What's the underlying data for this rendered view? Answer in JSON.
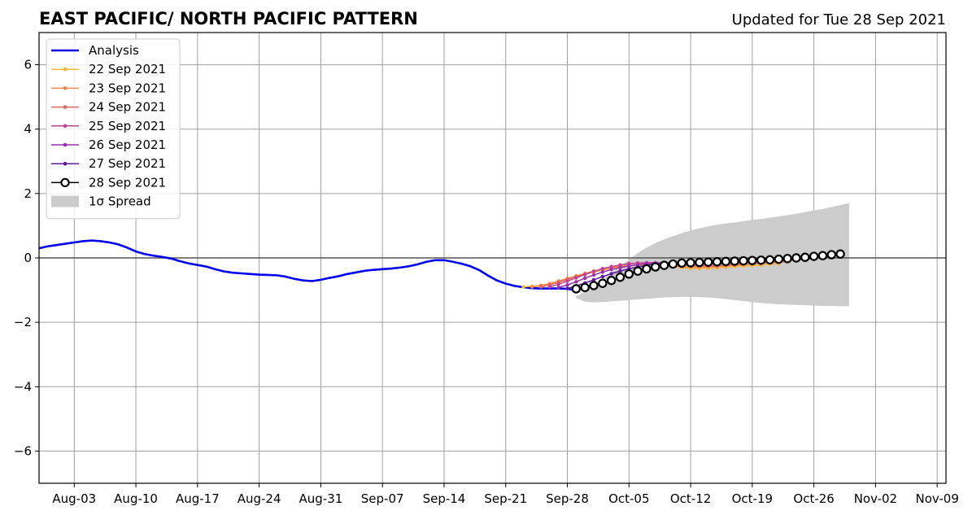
{
  "chart_data": {
    "type": "line",
    "title": "EAST PACIFIC/ NORTH PACIFIC PATTERN",
    "subtitle": "Updated for Tue 28 Sep 2021",
    "xlabel": "",
    "ylabel": "",
    "x_start": "2021-07-30",
    "x_end": "2021-11-10",
    "ylim": [
      -7,
      7
    ],
    "yticks": [
      -6,
      -4,
      -2,
      0,
      2,
      4,
      6
    ],
    "xticks": [
      {
        "date": "2021-08-03",
        "label": "Aug-03"
      },
      {
        "date": "2021-08-10",
        "label": "Aug-10"
      },
      {
        "date": "2021-08-17",
        "label": "Aug-17"
      },
      {
        "date": "2021-08-24",
        "label": "Aug-24"
      },
      {
        "date": "2021-08-31",
        "label": "Aug-31"
      },
      {
        "date": "2021-09-07",
        "label": "Sep-07"
      },
      {
        "date": "2021-09-14",
        "label": "Sep-14"
      },
      {
        "date": "2021-09-21",
        "label": "Sep-21"
      },
      {
        "date": "2021-09-28",
        "label": "Sep-28"
      },
      {
        "date": "2021-10-05",
        "label": "Oct-05"
      },
      {
        "date": "2021-10-12",
        "label": "Oct-12"
      },
      {
        "date": "2021-10-19",
        "label": "Oct-19"
      },
      {
        "date": "2021-10-26",
        "label": "Oct-26"
      },
      {
        "date": "2021-11-02",
        "label": "Nov-02"
      },
      {
        "date": "2021-11-09",
        "label": "Nov-09"
      }
    ],
    "grid": true,
    "legend_position": "top-left",
    "series": [
      {
        "name": "Analysis",
        "color": "#0000ee",
        "start": "2021-07-30",
        "values": [
          0.3,
          0.36,
          0.4,
          0.44,
          0.48,
          0.52,
          0.54,
          0.52,
          0.48,
          0.42,
          0.32,
          0.2,
          0.12,
          0.07,
          0.03,
          -0.02,
          -0.1,
          -0.17,
          -0.22,
          -0.27,
          -0.35,
          -0.42,
          -0.46,
          -0.48,
          -0.5,
          -0.52,
          -0.53,
          -0.54,
          -0.58,
          -0.65,
          -0.7,
          -0.72,
          -0.68,
          -0.62,
          -0.57,
          -0.5,
          -0.45,
          -0.4,
          -0.37,
          -0.35,
          -0.33,
          -0.3,
          -0.26,
          -0.2,
          -0.12,
          -0.07,
          -0.07,
          -0.12,
          -0.18,
          -0.26,
          -0.38,
          -0.55,
          -0.7,
          -0.8,
          -0.87,
          -0.91,
          -0.94,
          -0.95,
          -0.95,
          -0.95,
          -0.96,
          -1.0
        ]
      },
      {
        "name": "22 Sep 2021",
        "color": "#f5b83d",
        "start": "2021-09-23",
        "values": [
          -0.9,
          -0.88,
          -0.85,
          -0.8,
          -0.72,
          -0.64,
          -0.57,
          -0.5,
          -0.44,
          -0.38,
          -0.32,
          -0.27,
          -0.24,
          -0.22,
          -0.21,
          -0.22,
          -0.24,
          -0.27,
          -0.3,
          -0.32,
          -0.33,
          -0.32,
          -0.31,
          -0.29,
          -0.27,
          -0.25,
          -0.24,
          -0.22,
          -0.2,
          -0.18
        ]
      },
      {
        "name": "23 Sep 2021",
        "color": "#f0884a",
        "start": "2021-09-24",
        "values": [
          -0.9,
          -0.86,
          -0.8,
          -0.72,
          -0.64,
          -0.56,
          -0.48,
          -0.41,
          -0.35,
          -0.3,
          -0.26,
          -0.24,
          -0.22,
          -0.21,
          -0.22,
          -0.24,
          -0.26,
          -0.28,
          -0.29,
          -0.29,
          -0.28,
          -0.27,
          -0.25,
          -0.23,
          -0.21,
          -0.19,
          -0.17,
          -0.15,
          -0.13,
          -0.12
        ]
      },
      {
        "name": "24 Sep 2021",
        "color": "#e06666",
        "start": "2021-09-25",
        "values": [
          -0.9,
          -0.84,
          -0.76,
          -0.67,
          -0.58,
          -0.5,
          -0.42,
          -0.35,
          -0.28,
          -0.22,
          -0.18,
          -0.16,
          -0.15,
          -0.16,
          -0.18,
          -0.2,
          -0.22,
          -0.24,
          -0.25,
          -0.25,
          -0.24,
          -0.23,
          -0.21,
          -0.19,
          -0.17,
          -0.15,
          -0.13,
          -0.11,
          -0.09,
          -0.08
        ]
      },
      {
        "name": "25 Sep 2021",
        "color": "#c4418f",
        "start": "2021-09-26",
        "values": [
          -0.9,
          -0.82,
          -0.72,
          -0.62,
          -0.52,
          -0.42,
          -0.33,
          -0.27,
          -0.22,
          -0.18,
          -0.16,
          -0.15,
          -0.15,
          -0.16,
          -0.18,
          -0.19,
          -0.2,
          -0.2,
          -0.2,
          -0.19,
          -0.18,
          -0.16,
          -0.14,
          -0.12,
          -0.1,
          -0.08,
          -0.07,
          -0.06,
          -0.05,
          -0.05
        ]
      },
      {
        "name": "26 Sep 2021",
        "color": "#9a2fb0",
        "start": "2021-09-27",
        "values": [
          -0.92,
          -0.84,
          -0.74,
          -0.63,
          -0.53,
          -0.44,
          -0.36,
          -0.3,
          -0.25,
          -0.21,
          -0.18,
          -0.16,
          -0.15,
          -0.15,
          -0.16,
          -0.17,
          -0.18,
          -0.18,
          -0.17,
          -0.16,
          -0.15,
          -0.13,
          -0.11,
          -0.09,
          -0.08,
          -0.06,
          -0.05,
          -0.04,
          -0.03,
          -0.03
        ]
      },
      {
        "name": "27 Sep 2021",
        "color": "#5a1a9a",
        "start": "2021-09-28",
        "values": [
          -0.95,
          -0.87,
          -0.78,
          -0.68,
          -0.58,
          -0.49,
          -0.41,
          -0.34,
          -0.28,
          -0.23,
          -0.19,
          -0.16,
          -0.14,
          -0.13,
          -0.13,
          -0.13,
          -0.13,
          -0.12,
          -0.11,
          -0.1,
          -0.09,
          -0.07,
          -0.06,
          -0.04,
          -0.03,
          -0.02,
          -0.01,
          0.0,
          0.01,
          0.02
        ]
      },
      {
        "name": "28 Sep 2021",
        "color": "#000000",
        "start": "2021-09-29",
        "values": [
          -0.96,
          -0.92,
          -0.86,
          -0.79,
          -0.7,
          -0.6,
          -0.5,
          -0.41,
          -0.34,
          -0.28,
          -0.23,
          -0.19,
          -0.16,
          -0.15,
          -0.14,
          -0.13,
          -0.12,
          -0.11,
          -0.1,
          -0.09,
          -0.08,
          -0.07,
          -0.06,
          -0.04,
          -0.02,
          0.0,
          0.02,
          0.05,
          0.07,
          0.1,
          0.12
        ]
      }
    ],
    "spread": {
      "name": "1σ Spread",
      "color": "#cccccc",
      "start": "2021-09-29",
      "upper": [
        -1.2,
        -1.05,
        -0.85,
        -0.65,
        -0.45,
        -0.25,
        -0.05,
        0.15,
        0.32,
        0.46,
        0.58,
        0.68,
        0.77,
        0.85,
        0.92,
        0.98,
        1.03,
        1.07,
        1.1,
        1.14,
        1.18,
        1.21,
        1.25,
        1.29,
        1.33,
        1.37,
        1.42,
        1.47,
        1.52,
        1.58,
        1.64,
        1.7
      ],
      "lower": [
        -1.25,
        -1.36,
        -1.38,
        -1.37,
        -1.35,
        -1.33,
        -1.31,
        -1.29,
        -1.27,
        -1.25,
        -1.23,
        -1.22,
        -1.21,
        -1.21,
        -1.22,
        -1.23,
        -1.25,
        -1.28,
        -1.31,
        -1.34,
        -1.37,
        -1.4,
        -1.42,
        -1.44,
        -1.45,
        -1.46,
        -1.47,
        -1.48,
        -1.49,
        -1.49,
        -1.5,
        -1.5
      ]
    }
  }
}
